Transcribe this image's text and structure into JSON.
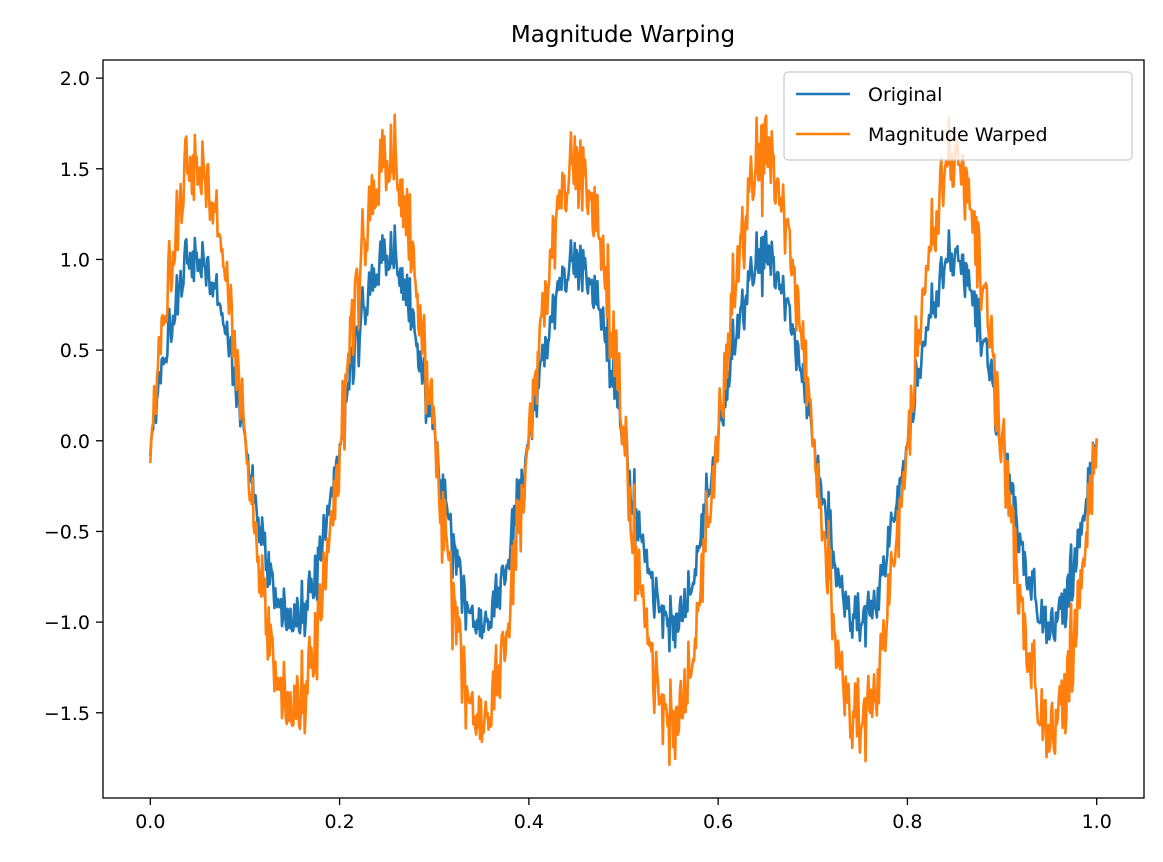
{
  "chart_data": {
    "type": "line",
    "title": "Magnitude Warping",
    "xlabel": "",
    "ylabel": "",
    "xlim": [
      -0.05,
      1.05
    ],
    "ylim": [
      -1.97,
      2.1
    ],
    "xticks": [
      0.0,
      0.2,
      0.4,
      0.6,
      0.8,
      1.0
    ],
    "xtick_labels": [
      "0.0",
      "0.2",
      "0.4",
      "0.6",
      "0.8",
      "1.0"
    ],
    "yticks": [
      -1.5,
      -1.0,
      -0.5,
      0.0,
      0.5,
      1.0,
      1.5,
      2.0
    ],
    "ytick_labels": [
      "−1.5",
      "−1.0",
      "−0.5",
      "0.0",
      "0.5",
      "1.0",
      "1.5",
      "2.0"
    ],
    "grid": false,
    "legend_position": "top-right",
    "signal": {
      "frequency": 5,
      "points": 1000,
      "x_start": 0.0,
      "x_end": 1.0
    },
    "series": [
      {
        "name": "Original",
        "color": "#1f77b4",
        "amplitude": [
          1.0,
          1.0
        ],
        "sample_values": [
          {
            "x": 0.0,
            "y": 0.0
          },
          {
            "x": 0.06,
            "y": 1.13
          },
          {
            "x": 0.16,
            "y": -1.14
          },
          {
            "x": 0.25,
            "y": 1.15
          },
          {
            "x": 0.35,
            "y": -1.13
          },
          {
            "x": 0.46,
            "y": 1.16
          },
          {
            "x": 0.55,
            "y": -1.13
          },
          {
            "x": 0.65,
            "y": 1.23
          },
          {
            "x": 0.75,
            "y": -1.2
          },
          {
            "x": 0.85,
            "y": 1.28
          },
          {
            "x": 0.95,
            "y": -1.17
          },
          {
            "x": 1.0,
            "y": -0.08
          }
        ]
      },
      {
        "name": "Magnitude Warped",
        "color": "#ff7f0e",
        "amplitude": [
          1.48,
          1.58
        ],
        "sample_values": [
          {
            "x": 0.0,
            "y": 0.0
          },
          {
            "x": 0.06,
            "y": 1.69
          },
          {
            "x": 0.155,
            "y": -1.71
          },
          {
            "x": 0.25,
            "y": 1.67
          },
          {
            "x": 0.36,
            "y": -1.75
          },
          {
            "x": 0.465,
            "y": 1.74
          },
          {
            "x": 0.555,
            "y": -1.73
          },
          {
            "x": 0.645,
            "y": 1.78
          },
          {
            "x": 0.75,
            "y": -1.81
          },
          {
            "x": 0.845,
            "y": 1.9
          },
          {
            "x": 0.96,
            "y": -1.76
          },
          {
            "x": 1.0,
            "y": -0.12
          }
        ]
      }
    ]
  }
}
